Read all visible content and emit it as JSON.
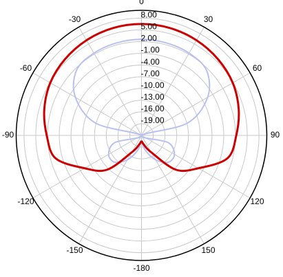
{
  "chart_data": {
    "type": "polar",
    "theta": [
      -180,
      -165,
      -150,
      -135,
      -120,
      -105,
      -90,
      -75,
      -60,
      -45,
      -30,
      -15,
      0,
      15,
      30,
      45,
      60,
      75,
      90,
      105,
      120,
      135,
      150,
      165,
      180
    ],
    "series": [
      {
        "color": "#b8c0f2",
        "values": [
          -20.6,
          -18,
          -14.8,
          -12.3,
          -12.3,
          -15,
          -22,
          -9.9,
          -2.5,
          1.5,
          2.3,
          2.5,
          2.6,
          2.5,
          2.3,
          1.5,
          -2.5,
          -9.9,
          -22,
          -15,
          -12.3,
          -12.3,
          -14.8,
          -18,
          -20.6
        ]
      },
      {
        "color": "#cc0000",
        "values": [
          -20.6,
          -19.5,
          -17,
          -9.6,
          -5.2,
          0.7,
          2.2,
          3.7,
          4.9,
          5.6,
          6.1,
          6.4,
          6.5,
          6.4,
          6.1,
          5.6,
          4.9,
          3.7,
          2.2,
          0.7,
          -5.2,
          -9.6,
          -17,
          -19.5,
          -20.6
        ]
      }
    ],
    "rlim": [
      -22,
      10
    ],
    "rticks": [
      {
        "value": 8,
        "label": "8.00"
      },
      {
        "value": 5,
        "label": "5.00"
      },
      {
        "value": 2,
        "label": "2.00"
      },
      {
        "value": -1,
        "label": "-1.00"
      },
      {
        "value": -4,
        "label": "-4.00"
      },
      {
        "value": -7,
        "label": "-7.00"
      },
      {
        "value": -10,
        "label": "-10.00"
      },
      {
        "value": -13,
        "label": "-13.00"
      },
      {
        "value": -16,
        "label": "-16.00"
      },
      {
        "value": -19,
        "label": "-19.00"
      }
    ],
    "thetaticks": [
      0,
      30,
      60,
      90,
      120,
      150,
      -180,
      -150,
      -120,
      -90,
      -60,
      -30
    ],
    "grid": true
  }
}
